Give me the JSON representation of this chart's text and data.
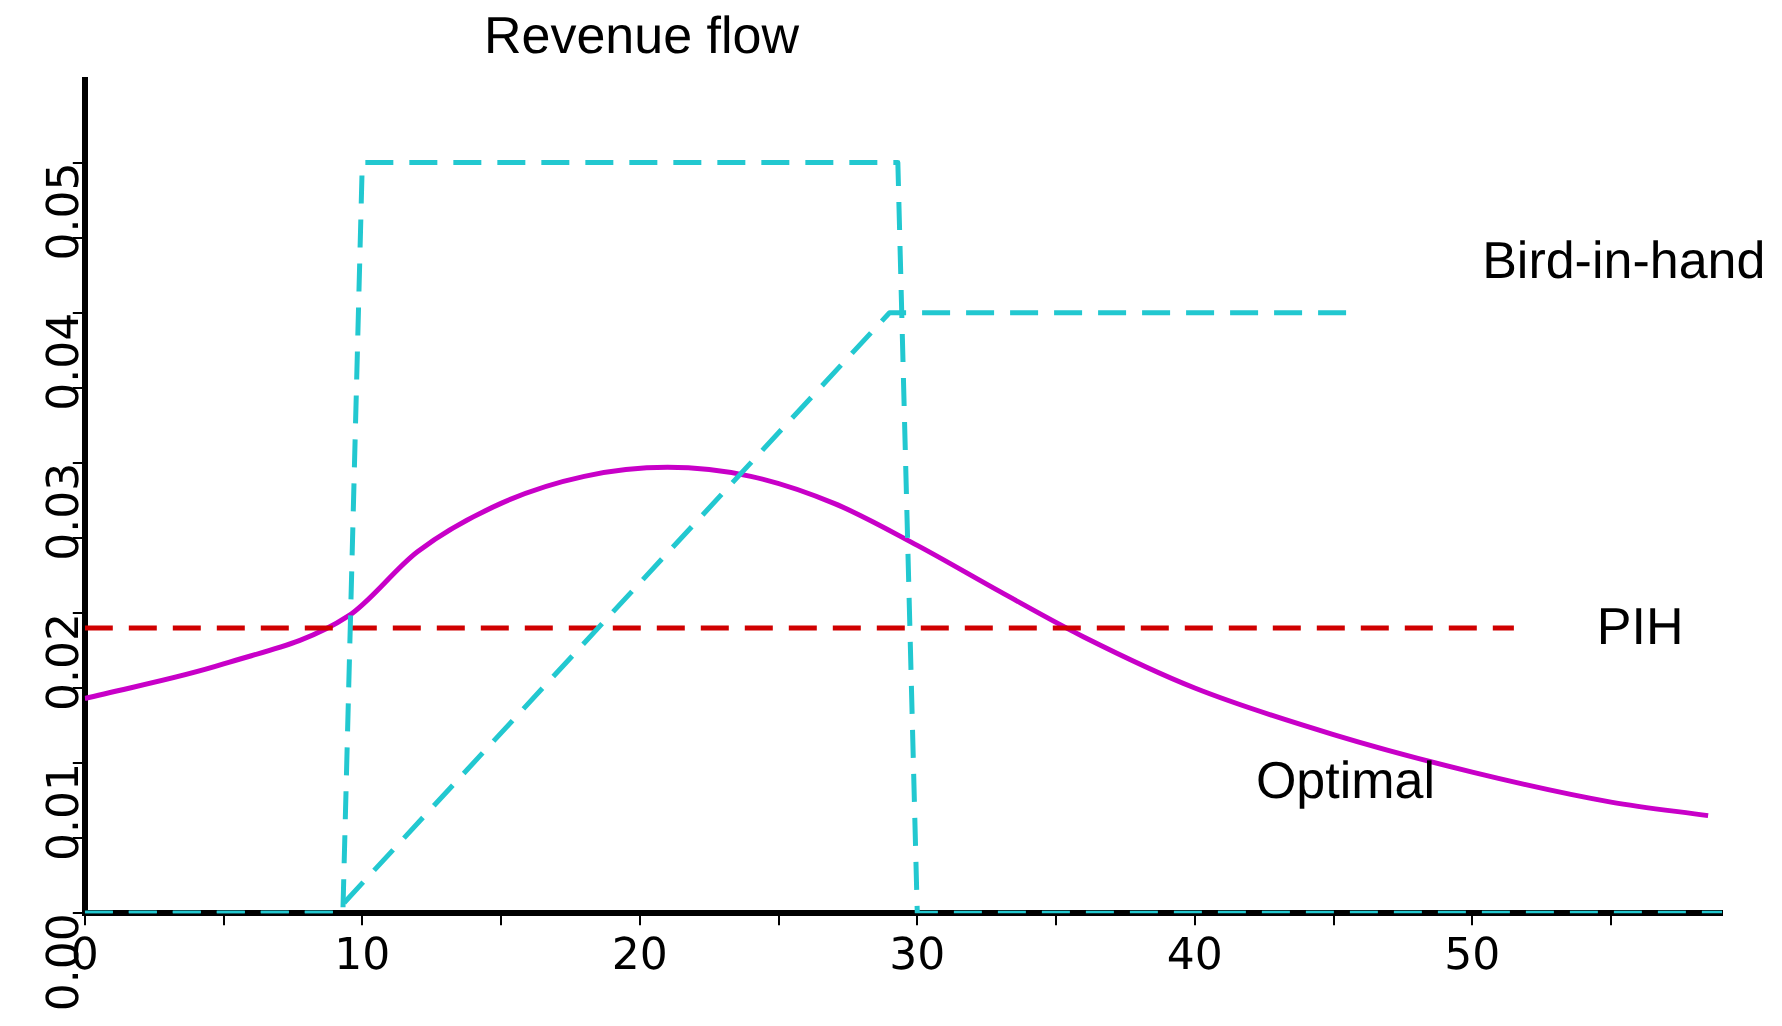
{
  "chart_data": {
    "type": "line",
    "grid": false,
    "marker": "none",
    "xlim": [
      0,
      59
    ],
    "xticks": [
      0,
      {
        "value": 5,
        "label": null
      },
      10,
      {
        "value": 15,
        "label": null
      },
      20,
      {
        "value": 25,
        "label": null
      },
      30,
      {
        "value": 35,
        "label": null
      },
      40,
      {
        "value": 45,
        "label": null
      },
      50,
      {
        "value": 55,
        "label": null
      }
    ],
    "ylim": [
      0,
      0.0555
    ],
    "yticks": [
      {
        "value": 0,
        "label": "0.00"
      },
      {
        "value": 0.005,
        "label": null
      },
      {
        "value": 0.01,
        "label": "0.01"
      },
      {
        "value": 0.015,
        "label": null
      },
      {
        "value": 0.02,
        "label": "0.02"
      },
      {
        "value": 0.025,
        "label": null
      },
      {
        "value": 0.03,
        "label": "0.03"
      },
      {
        "value": 0.035,
        "label": null
      },
      {
        "value": 0.04,
        "label": "0.04"
      },
      {
        "value": 0.045,
        "label": null
      },
      {
        "value": 0.05,
        "label": "0.05"
      }
    ],
    "series": [
      {
        "name": "Revenue flow",
        "color": "#22c8d0",
        "line_style": "dashed",
        "x": [
          0,
          9.3,
          10,
          29.3,
          30,
          59
        ],
        "values": [
          0,
          0,
          0.05,
          0.05,
          0,
          0
        ]
      },
      {
        "name": "Bird-in-hand",
        "color": "#22c8d0",
        "line_style": "dashed",
        "x": [
          0,
          9,
          29,
          45.5
        ],
        "values": [
          0,
          0,
          0.04,
          0.04
        ]
      },
      {
        "name": "PIH",
        "color": "#d00000",
        "line_style": "dashed",
        "x": [
          0,
          51.5
        ],
        "values": [
          0.019,
          0.019
        ]
      },
      {
        "name": "Optimal",
        "color": "#c800c8",
        "line_style": "solid",
        "x": [
          0,
          5,
          9.5,
          12,
          15,
          18,
          21,
          24,
          27,
          30,
          33,
          36,
          40,
          45,
          50,
          55,
          58.5
        ],
        "values": [
          0.0143,
          0.0166,
          0.0198,
          0.0241,
          0.0273,
          0.0291,
          0.0297,
          0.0291,
          0.0273,
          0.0245,
          0.0214,
          0.0184,
          0.015,
          0.0119,
          0.0094,
          0.0074,
          0.0065
        ]
      }
    ]
  }
}
